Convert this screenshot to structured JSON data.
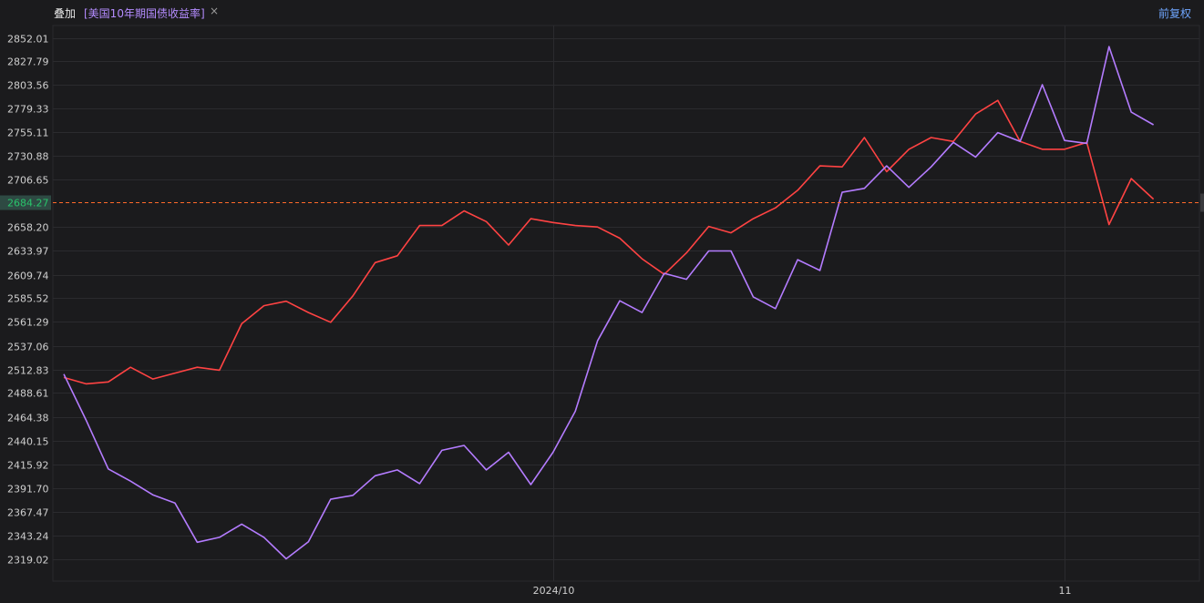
{
  "header": {
    "overlay_label": "叠加",
    "overlay_series": "[美国10年期国债收益率]",
    "close_glyph": "×",
    "adjust_label": "前复权"
  },
  "colors": {
    "background": "#1b1b1d",
    "series_red": "#ff4343",
    "series_purple": "#b47cff",
    "current_line": "#ff6a2a",
    "current_label_bg": "#2e4a43",
    "current_label_text": "#29c46b"
  },
  "chart_data": {
    "type": "line",
    "grid": true,
    "current_value_label": "2684.27",
    "current_value": 2684.27,
    "y_ticks": [
      "2852.01",
      "2827.79",
      "2803.56",
      "2779.33",
      "2755.11",
      "2730.88",
      "2706.65",
      "2684.27",
      "2658.20",
      "2633.97",
      "2609.74",
      "2585.52",
      "2561.29",
      "2537.06",
      "2512.83",
      "2488.61",
      "2464.38",
      "2440.15",
      "2415.92",
      "2391.70",
      "2367.47",
      "2343.24",
      "2319.02"
    ],
    "ylim": [
      2319.02,
      2852.01
    ],
    "x_ticks": [
      {
        "label": "2024/10",
        "index": 22
      },
      {
        "label": "11",
        "index": 45
      }
    ],
    "series": [
      {
        "color": "#ff4343",
        "values": [
          2504.5,
          2498.0,
          2500.0,
          2515.0,
          2503.0,
          2509.0,
          2515.0,
          2512.0,
          2559.5,
          2578.0,
          2582.5,
          2571.0,
          2561.0,
          2588.0,
          2622.0,
          2629.0,
          2660.0,
          2660.0,
          2675.0,
          2664.0,
          2640.0,
          2667.0,
          2663.0,
          2660.0,
          2658.5,
          2647.0,
          2626.0,
          2610.0,
          2632.0,
          2659.0,
          2652.5,
          2667.0,
          2678.0,
          2696.0,
          2721.0,
          2720.0,
          2750.0,
          2715.0,
          2738.0,
          2750.0,
          2746.0,
          2774.0,
          2788.0,
          2746.0,
          2738.0,
          2738.0,
          2745.0,
          2661.0,
          2708.0,
          2687.0
        ]
      },
      {
        "color": "#b47cff",
        "values": [
          2508.0,
          2461.0,
          2411.0,
          2398.5,
          2384.5,
          2376.0,
          2336.0,
          2341.0,
          2354.5,
          2341.0,
          2319.0,
          2336.5,
          2380.0,
          2384.0,
          2404.0,
          2410.0,
          2396.0,
          2430.0,
          2435.0,
          2410.0,
          2428.0,
          2395.0,
          2428.0,
          2470.0,
          2542.0,
          2583.0,
          2571.0,
          2611.0,
          2605.0,
          2634.0,
          2634.0,
          2587.0,
          2575.0,
          2625.0,
          2614.0,
          2694.0,
          2698.0,
          2721.0,
          2699.0,
          2720.0,
          2745.0,
          2730.0,
          2755.0,
          2746.0,
          2804.0,
          2747.0,
          2744.0,
          2843.0,
          2776.0,
          2763.0
        ]
      }
    ]
  }
}
